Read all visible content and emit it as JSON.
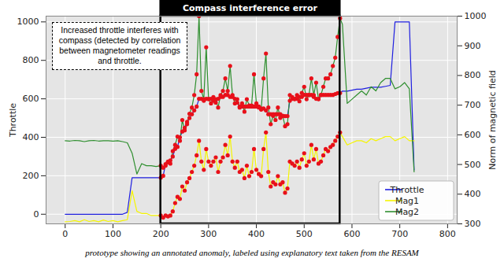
{
  "chart_data": {
    "type": "line",
    "x": [
      0,
      10,
      20,
      30,
      40,
      50,
      60,
      70,
      80,
      90,
      100,
      110,
      120,
      130,
      140,
      150,
      160,
      170,
      180,
      190,
      200,
      205,
      210,
      215,
      220,
      225,
      230,
      235,
      240,
      245,
      250,
      255,
      260,
      265,
      270,
      275,
      280,
      285,
      290,
      295,
      300,
      305,
      310,
      315,
      320,
      325,
      330,
      335,
      340,
      345,
      350,
      355,
      360,
      365,
      370,
      375,
      380,
      385,
      390,
      395,
      400,
      405,
      410,
      415,
      420,
      425,
      430,
      435,
      440,
      445,
      450,
      455,
      460,
      465,
      470,
      475,
      480,
      485,
      490,
      495,
      500,
      505,
      510,
      515,
      520,
      525,
      530,
      535,
      540,
      545,
      550,
      555,
      560,
      565,
      570,
      575,
      580,
      590,
      600,
      610,
      620,
      630,
      640,
      650,
      660,
      670,
      680,
      690,
      700,
      710,
      720,
      730
    ],
    "series": [
      {
        "name": "Throttle",
        "color": "#1f1fe0",
        "values": [
          0,
          0,
          0,
          0,
          0,
          0,
          0,
          0,
          0,
          0,
          0,
          0,
          0,
          10,
          190,
          190,
          190,
          190,
          190,
          190,
          190,
          200,
          260,
          270,
          280,
          300,
          340,
          350,
          400,
          430,
          450,
          480,
          500,
          520,
          540,
          560,
          600,
          600,
          590,
          600,
          600,
          600,
          590,
          580,
          600,
          610,
          610,
          620,
          620,
          610,
          610,
          600,
          580,
          560,
          560,
          560,
          560,
          560,
          560,
          560,
          560,
          560,
          550,
          550,
          540,
          520,
          520,
          520,
          520,
          520,
          520,
          510,
          510,
          510,
          590,
          600,
          600,
          600,
          610,
          610,
          620,
          620,
          620,
          620,
          610,
          600,
          600,
          620,
          620,
          620,
          620,
          620,
          620,
          625,
          630,
          630,
          640,
          640,
          645,
          650,
          650,
          655,
          660,
          660,
          660,
          665,
          670,
          1000,
          1000,
          1000,
          1000,
          230
        ]
      },
      {
        "name": "Mag1",
        "color": "#f5f500",
        "axis": "y2",
        "values": [
          307,
          308,
          311,
          307,
          314,
          308,
          311,
          307,
          313,
          308,
          311,
          307,
          311,
          314,
          412,
          342,
          335,
          335,
          328,
          328,
          328,
          321,
          328,
          325,
          328,
          342,
          370,
          391,
          384,
          426,
          412,
          440,
          454,
          475,
          496,
          531,
          580,
          510,
          482,
          552,
          510,
          496,
          510,
          524,
          475,
          510,
          524,
          566,
          531,
          594,
          510,
          489,
          510,
          475,
          482,
          454,
          496,
          461,
          475,
          552,
          482,
          468,
          461,
          552,
          608,
          475,
          426,
          440,
          433,
          461,
          433,
          440,
          405,
          419,
          510,
          503,
          496,
          510,
          489,
          517,
          538,
          496,
          510,
          566,
          517,
          552,
          503,
          510,
          531,
          552,
          545,
          559,
          566,
          580,
          594,
          608,
          594,
          566,
          573,
          580,
          580,
          573,
          587,
          580,
          587,
          594,
          594,
          580,
          587,
          594,
          580,
          580
        ]
      },
      {
        "name": "Mag2",
        "color": "#2f8f2f",
        "axis": "y2",
        "values": [
          580,
          579,
          581,
          580,
          577,
          580,
          581,
          579,
          580,
          580,
          579,
          580,
          577,
          573,
          538,
          468,
          503,
          496,
          496,
          493,
          496,
          489,
          496,
          510,
          503,
          545,
          566,
          594,
          580,
          650,
          615,
          636,
          671,
          692,
          734,
          804,
          1000,
          748,
          720,
          895,
          720,
          706,
          727,
          720,
          692,
          734,
          748,
          790,
          748,
          832,
          734,
          706,
          720,
          692,
          706,
          678,
          720,
          699,
          699,
          804,
          706,
          692,
          685,
          790,
          874,
          692,
          636,
          664,
          650,
          692,
          657,
          664,
          629,
          636,
          734,
          727,
          720,
          734,
          713,
          741,
          762,
          720,
          734,
          790,
          734,
          776,
          720,
          734,
          762,
          790,
          790,
          804,
          832,
          860,
          930,
          993,
          972,
          706,
          720,
          734,
          748,
          734,
          762,
          748,
          776,
          790,
          790,
          755,
          762,
          776,
          755,
          475
        ]
      }
    ],
    "xlim": [
      -40,
      820
    ],
    "xticks": [
      0,
      100,
      200,
      300,
      400,
      500,
      600,
      700,
      800
    ],
    "ylim": [
      -50,
      1030
    ],
    "yticks": [
      0,
      200,
      400,
      600,
      800,
      1000
    ],
    "y2lim": [
      300,
      1000
    ],
    "y2ticks": [
      300,
      400,
      500,
      600,
      700,
      800,
      900,
      1000
    ],
    "ylabel": "Throttle",
    "y2label": "Norm of magnetic field",
    "grid": true,
    "legend": "lower right",
    "annotations": [
      {
        "type": "region",
        "label": "Compass interference error",
        "xlim": [
          200,
          575
        ],
        "color": "#e8101a",
        "marker": "circle"
      },
      {
        "type": "note",
        "text": "Increased throttle interferes with compass (detected by correlation between magnetometer readings and throttle."
      }
    ],
    "caption": "prototype showing an annotated anomaly, labeled using explanatory text taken from the RESAM"
  }
}
